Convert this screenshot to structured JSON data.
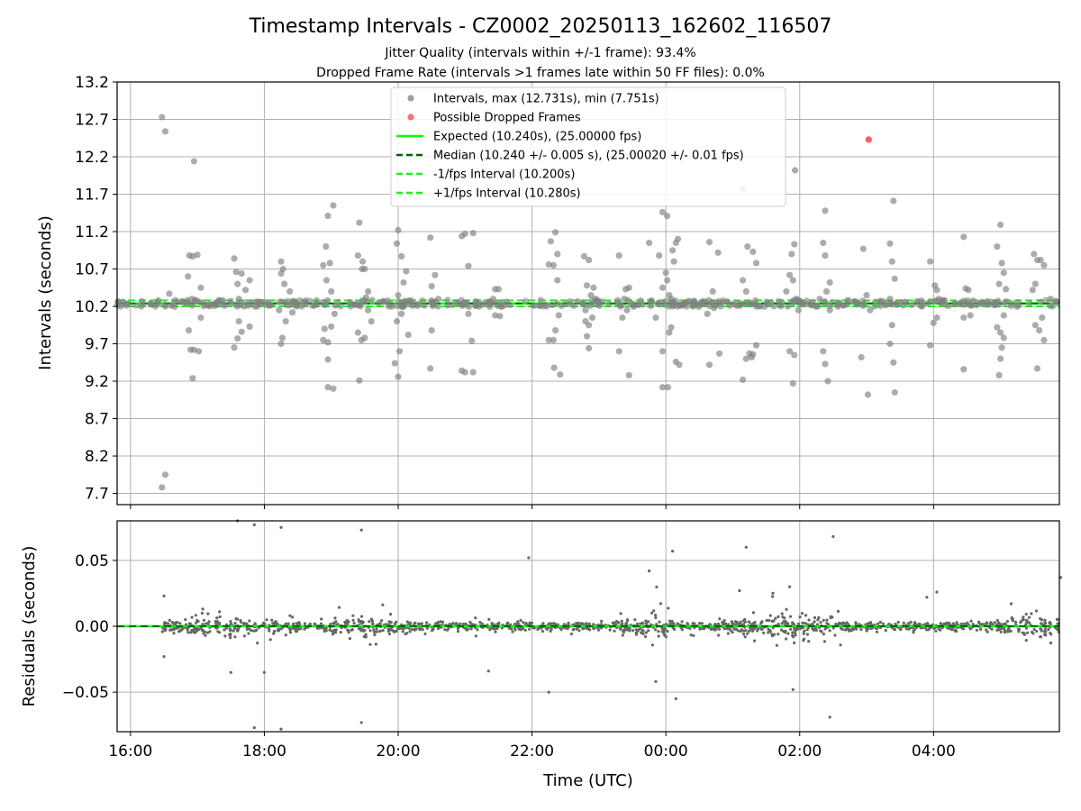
{
  "figure": {
    "title": "Timestamp Intervals - CZ0002_20250113_162602_116507",
    "subtitle_line1": "Jitter Quality (intervals within +/-1 frame): 93.4%",
    "subtitle_line2": "Dropped Frame Rate (intervals >1 frames late within 50 FF files): 0.0%",
    "x_label": "Time (UTC)"
  },
  "colors": {
    "scatter": "#808080",
    "dropped": "#ff4040",
    "expected": "#00ff00",
    "median": "#006400",
    "interval_lines": "#22ee22",
    "grid": "#b0b0b0",
    "residual_points": "#666666"
  },
  "chart_data": [
    {
      "type": "scatter",
      "ylabel": "Intervals (seconds)",
      "ylim": [
        7.55,
        13.2
      ],
      "xlim_hours": [
        15.8,
        29.88
      ],
      "x_ticks": [
        "16:00",
        "18:00",
        "20:00",
        "22:00",
        "00:00",
        "02:00",
        "04:00"
      ],
      "y_ticks": [
        "7.7",
        "8.2",
        "8.7",
        "9.2",
        "9.7",
        "10.2",
        "10.7",
        "11.2",
        "11.7",
        "12.2",
        "12.7",
        "13.2"
      ],
      "grid": true,
      "legend_position": "top-center",
      "legend": {
        "intervals": "Intervals, max (12.731s), min (7.751s)",
        "dropped": "Possible Dropped Frames",
        "expected": "Expected (10.240s), (25.00000 fps)",
        "median": "Median (10.240 +/- 0.005 s), (25.00020 +/- 0.01 fps)",
        "minus": "-1/fps Interval (10.200s)",
        "plus": "+1/fps Interval (10.280s)"
      },
      "expected": 10.24,
      "median": 10.24,
      "minus_interval": 10.2,
      "plus_interval": 10.28,
      "dropped_points": [
        [
          27.03,
          12.43
        ]
      ],
      "points": [
        [
          16.47,
          12.73
        ],
        [
          16.52,
          12.54
        ],
        [
          16.47,
          7.78
        ],
        [
          16.52,
          7.95
        ],
        [
          16.95,
          12.14
        ],
        [
          16.58,
          10.37
        ],
        [
          16.52,
          10.2
        ],
        [
          16.88,
          10.88
        ],
        [
          16.93,
          10.87
        ],
        [
          17.0,
          10.89
        ],
        [
          16.86,
          10.6
        ],
        [
          17.05,
          10.45
        ],
        [
          16.92,
          10.3
        ],
        [
          17.08,
          10.25
        ],
        [
          16.9,
          9.62
        ],
        [
          16.95,
          9.62
        ],
        [
          17.02,
          9.6
        ],
        [
          16.93,
          9.24
        ],
        [
          17.05,
          10.05
        ],
        [
          16.87,
          9.88
        ],
        [
          16.98,
          10.28
        ],
        [
          17.55,
          10.84
        ],
        [
          17.58,
          10.66
        ],
        [
          17.66,
          10.64
        ],
        [
          17.6,
          10.5
        ],
        [
          17.72,
          10.42
        ],
        [
          17.78,
          10.55
        ],
        [
          17.62,
          10.3
        ],
        [
          17.55,
          9.65
        ],
        [
          17.6,
          9.77
        ],
        [
          17.66,
          9.86
        ],
        [
          17.78,
          9.93
        ],
        [
          17.62,
          10.0
        ],
        [
          17.8,
          10.25
        ],
        [
          17.7,
          10.2
        ],
        [
          18.25,
          10.8
        ],
        [
          18.28,
          10.7
        ],
        [
          18.25,
          10.64
        ],
        [
          18.3,
          10.5
        ],
        [
          18.38,
          10.4
        ],
        [
          18.25,
          9.7
        ],
        [
          18.27,
          9.78
        ],
        [
          18.32,
          10.0
        ],
        [
          18.42,
          10.12
        ],
        [
          18.45,
          10.27
        ],
        [
          18.22,
          10.15
        ],
        [
          18.35,
          10.27
        ],
        [
          18.92,
          11.0
        ],
        [
          18.95,
          11.41
        ],
        [
          19.03,
          11.55
        ],
        [
          18.88,
          10.75
        ],
        [
          18.98,
          10.78
        ],
        [
          18.93,
          10.55
        ],
        [
          19.0,
          10.4
        ],
        [
          18.88,
          9.75
        ],
        [
          18.95,
          9.72
        ],
        [
          18.9,
          9.9
        ],
        [
          19.0,
          9.93
        ],
        [
          18.95,
          9.49
        ],
        [
          18.95,
          9.12
        ],
        [
          19.03,
          9.1
        ],
        [
          19.05,
          10.1
        ],
        [
          19.42,
          11.32
        ],
        [
          19.4,
          10.88
        ],
        [
          19.47,
          10.8
        ],
        [
          19.5,
          10.7
        ],
        [
          19.46,
          10.7
        ],
        [
          19.55,
          10.4
        ],
        [
          19.52,
          10.32
        ],
        [
          19.4,
          9.85
        ],
        [
          19.5,
          9.78
        ],
        [
          19.45,
          9.75
        ],
        [
          19.42,
          9.21
        ],
        [
          19.55,
          10.15
        ],
        [
          19.6,
          10.0
        ],
        [
          20.0,
          11.22
        ],
        [
          19.98,
          11.04
        ],
        [
          20.05,
          10.87
        ],
        [
          20.08,
          10.52
        ],
        [
          20.12,
          10.67
        ],
        [
          20.0,
          10.35
        ],
        [
          20.1,
          10.25
        ],
        [
          19.95,
          9.44
        ],
        [
          20.0,
          9.26
        ],
        [
          20.02,
          9.6
        ],
        [
          20.05,
          10.1
        ],
        [
          20.08,
          10.2
        ],
        [
          19.98,
          10.0
        ],
        [
          20.15,
          9.82
        ],
        [
          20.48,
          11.12
        ],
        [
          20.55,
          10.62
        ],
        [
          20.5,
          10.47
        ],
        [
          20.6,
          10.3
        ],
        [
          20.52,
          10.23
        ],
        [
          20.5,
          9.88
        ],
        [
          20.48,
          9.37
        ],
        [
          20.95,
          11.14
        ],
        [
          21.0,
          11.17
        ],
        [
          21.12,
          11.18
        ],
        [
          21.05,
          10.74
        ],
        [
          20.95,
          10.22
        ],
        [
          21.02,
          10.25
        ],
        [
          20.95,
          9.34
        ],
        [
          21.0,
          9.32
        ],
        [
          21.12,
          9.32
        ],
        [
          21.1,
          9.74
        ],
        [
          21.05,
          10.1
        ],
        [
          21.45,
          10.43
        ],
        [
          21.5,
          10.43
        ],
        [
          21.38,
          10.25
        ],
        [
          21.45,
          10.08
        ],
        [
          21.52,
          10.07
        ],
        [
          21.42,
          10.3
        ],
        [
          22.28,
          11.07
        ],
        [
          22.35,
          11.19
        ],
        [
          22.25,
          10.76
        ],
        [
          22.32,
          10.75
        ],
        [
          22.38,
          10.9
        ],
        [
          22.38,
          10.55
        ],
        [
          22.25,
          9.75
        ],
        [
          22.32,
          9.75
        ],
        [
          22.35,
          9.88
        ],
        [
          22.33,
          9.38
        ],
        [
          22.42,
          9.29
        ],
        [
          22.3,
          10.22
        ],
        [
          22.4,
          10.08
        ],
        [
          22.78,
          10.87
        ],
        [
          22.85,
          10.82
        ],
        [
          22.82,
          10.48
        ],
        [
          22.88,
          10.35
        ],
        [
          22.92,
          10.45
        ],
        [
          22.8,
          10.15
        ],
        [
          22.8,
          10.0
        ],
        [
          22.85,
          9.95
        ],
        [
          22.9,
          10.05
        ],
        [
          22.82,
          9.8
        ],
        [
          22.85,
          9.64
        ],
        [
          22.95,
          10.3
        ],
        [
          22.75,
          10.25
        ],
        [
          23.3,
          10.88
        ],
        [
          23.4,
          10.43
        ],
        [
          23.45,
          10.45
        ],
        [
          23.32,
          10.2
        ],
        [
          23.35,
          10.05
        ],
        [
          23.3,
          9.6
        ],
        [
          23.45,
          9.28
        ],
        [
          23.38,
          10.3
        ],
        [
          23.42,
          10.15
        ],
        [
          23.75,
          11.05
        ],
        [
          23.9,
          10.88
        ],
        [
          23.95,
          11.46
        ],
        [
          24.02,
          11.41
        ],
        [
          24.0,
          10.65
        ],
        [
          24.08,
          10.3
        ],
        [
          24.12,
          10.8
        ],
        [
          24.1,
          10.95
        ],
        [
          24.18,
          11.1
        ],
        [
          24.15,
          11.05
        ],
        [
          23.95,
          10.45
        ],
        [
          24.02,
          10.55
        ],
        [
          23.85,
          10.05
        ],
        [
          23.95,
          9.6
        ],
        [
          24.05,
          9.85
        ],
        [
          24.08,
          9.92
        ],
        [
          23.95,
          9.12
        ],
        [
          24.03,
          9.12
        ],
        [
          24.15,
          9.46
        ],
        [
          24.2,
          9.42
        ],
        [
          24.1,
          10.2
        ],
        [
          24.05,
          10.35
        ],
        [
          24.65,
          11.06
        ],
        [
          24.78,
          10.92
        ],
        [
          24.7,
          10.4
        ],
        [
          24.65,
          9.42
        ],
        [
          24.8,
          9.57
        ],
        [
          24.72,
          10.18
        ],
        [
          24.62,
          10.1
        ],
        [
          25.15,
          11.77
        ],
        [
          25.22,
          11.0
        ],
        [
          25.3,
          10.93
        ],
        [
          25.35,
          10.78
        ],
        [
          25.15,
          10.55
        ],
        [
          25.2,
          10.4
        ],
        [
          25.25,
          9.57
        ],
        [
          25.3,
          9.56
        ],
        [
          25.2,
          9.5
        ],
        [
          25.28,
          9.52
        ],
        [
          25.35,
          9.68
        ],
        [
          25.15,
          9.22
        ],
        [
          25.22,
          10.25
        ],
        [
          25.92,
          11.03
        ],
        [
          25.88,
          10.9
        ],
        [
          25.85,
          10.62
        ],
        [
          25.9,
          10.55
        ],
        [
          25.8,
          10.4
        ],
        [
          25.95,
          10.3
        ],
        [
          25.85,
          9.6
        ],
        [
          25.92,
          9.55
        ],
        [
          25.9,
          9.17
        ],
        [
          25.82,
          10.2
        ],
        [
          25.98,
          10.15
        ],
        [
          25.93,
          12.02
        ],
        [
          26.38,
          11.48
        ],
        [
          26.35,
          11.05
        ],
        [
          26.38,
          10.88
        ],
        [
          26.45,
          10.52
        ],
        [
          26.4,
          10.4
        ],
        [
          26.35,
          9.6
        ],
        [
          26.38,
          9.43
        ],
        [
          26.42,
          9.2
        ],
        [
          26.45,
          10.15
        ],
        [
          26.3,
          10.3
        ],
        [
          26.95,
          10.97
        ],
        [
          27.0,
          10.35
        ],
        [
          26.92,
          9.52
        ],
        [
          27.02,
          9.02
        ],
        [
          27.05,
          10.15
        ],
        [
          27.4,
          11.61
        ],
        [
          27.35,
          11.04
        ],
        [
          27.38,
          10.8
        ],
        [
          27.42,
          10.57
        ],
        [
          27.35,
          10.3
        ],
        [
          27.38,
          9.95
        ],
        [
          27.35,
          9.7
        ],
        [
          27.4,
          9.45
        ],
        [
          27.42,
          9.05
        ],
        [
          27.45,
          10.25
        ],
        [
          27.95,
          10.8
        ],
        [
          28.02,
          10.48
        ],
        [
          28.05,
          10.42
        ],
        [
          28.0,
          9.98
        ],
        [
          28.05,
          10.05
        ],
        [
          27.95,
          9.68
        ],
        [
          28.08,
          10.3
        ],
        [
          28.45,
          11.13
        ],
        [
          28.48,
          10.44
        ],
        [
          28.52,
          10.42
        ],
        [
          28.45,
          10.05
        ],
        [
          28.55,
          10.08
        ],
        [
          28.45,
          9.36
        ],
        [
          29.0,
          11.29
        ],
        [
          28.95,
          11.0
        ],
        [
          29.02,
          10.78
        ],
        [
          29.05,
          10.65
        ],
        [
          28.98,
          10.5
        ],
        [
          29.08,
          10.43
        ],
        [
          28.95,
          9.92
        ],
        [
          29.0,
          9.85
        ],
        [
          29.05,
          9.78
        ],
        [
          29.02,
          9.65
        ],
        [
          29.0,
          9.5
        ],
        [
          28.98,
          9.28
        ],
        [
          29.05,
          10.08
        ],
        [
          29.5,
          10.9
        ],
        [
          29.55,
          10.82
        ],
        [
          29.6,
          10.82
        ],
        [
          29.52,
          10.5
        ],
        [
          29.48,
          10.42
        ],
        [
          29.65,
          10.75
        ],
        [
          29.52,
          9.95
        ],
        [
          29.58,
          9.88
        ],
        [
          29.65,
          9.75
        ],
        [
          29.55,
          9.37
        ],
        [
          29.62,
          10.05
        ],
        [
          29.75,
          10.3
        ]
      ]
    },
    {
      "type": "scatter",
      "ylabel": "Residuals (seconds)",
      "ylim": [
        -0.08,
        0.08
      ],
      "y_ticks": [
        "0.05",
        "0.00",
        "−0.05"
      ],
      "grid": true,
      "median_line": 0.0,
      "outliers": [
        [
          17.6,
          0.08
        ],
        [
          17.85,
          0.077
        ],
        [
          18.25,
          0.075
        ],
        [
          19.45,
          0.073
        ],
        [
          21.95,
          0.052
        ],
        [
          25.2,
          0.06
        ],
        [
          24.1,
          0.057
        ],
        [
          26.5,
          0.068
        ],
        [
          17.85,
          -0.077
        ],
        [
          18.25,
          -0.078
        ],
        [
          19.45,
          -0.073
        ],
        [
          22.25,
          -0.05
        ],
        [
          24.15,
          -0.055
        ],
        [
          26.45,
          -0.069
        ],
        [
          25.9,
          -0.048
        ],
        [
          23.75,
          0.042
        ],
        [
          23.85,
          -0.042
        ],
        [
          16.5,
          0.023
        ],
        [
          16.5,
          -0.023
        ],
        [
          17.5,
          -0.035
        ],
        [
          18.0,
          -0.035
        ],
        [
          21.35,
          -0.034
        ],
        [
          29.9,
          0.037
        ],
        [
          28.05,
          0.026
        ],
        [
          27.9,
          0.022
        ],
        [
          25.85,
          0.03
        ],
        [
          25.6,
          0.025
        ],
        [
          25.1,
          0.027
        ]
      ]
    }
  ]
}
